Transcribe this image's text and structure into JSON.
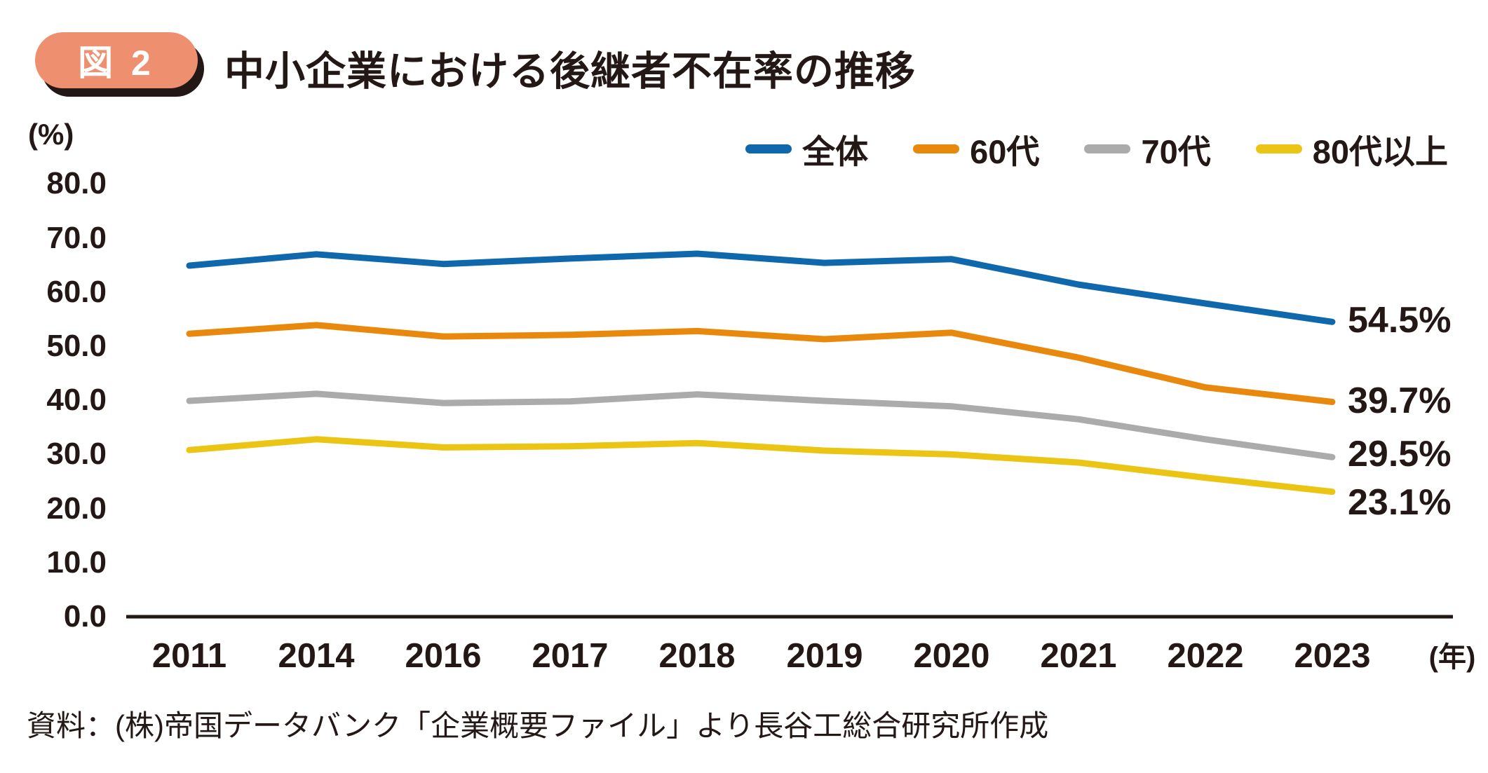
{
  "header": {
    "figure_label": "図 2",
    "title": "中小企業における後継者不在率の推移"
  },
  "axes": {
    "y_unit": "(%)",
    "x_unit": "(年)",
    "y_ticks": [
      "80.0",
      "70.0",
      "60.0",
      "50.0",
      "40.0",
      "30.0",
      "20.0",
      "10.0",
      "0.0"
    ]
  },
  "source": "資料：(株)帝国データバンク「企業概要ファイル」より長谷工総合研究所作成",
  "colors": {
    "text": "#231815",
    "badge": "#ee8f70",
    "axis_line": "#231815",
    "series_overall": "#0f67ac",
    "series_60s": "#e8880c",
    "series_70s": "#ababab",
    "series_80s": "#eac513"
  },
  "chart_data": {
    "type": "line",
    "title": "中小企業における後継者不在率の推移",
    "categories": [
      "2011",
      "2014",
      "2016",
      "2017",
      "2018",
      "2019",
      "2020",
      "2021",
      "2022",
      "2023"
    ],
    "xlabel": "(年)",
    "ylabel": "(%)",
    "ylim": [
      0,
      80
    ],
    "ytick_interval": 10,
    "grid": false,
    "legend_position": "top-right",
    "series": [
      {
        "name": "全体",
        "color": "#0f67ac",
        "values": [
          64.9,
          67.0,
          65.2,
          66.2,
          67.1,
          65.4,
          66.1,
          61.4,
          57.9,
          54.5
        ],
        "end_label": "54.5%"
      },
      {
        "name": "60代",
        "color": "#e8880c",
        "values": [
          52.3,
          53.9,
          51.8,
          52.1,
          52.8,
          51.3,
          52.5,
          47.9,
          42.4,
          39.7
        ],
        "end_label": "39.7%"
      },
      {
        "name": "70代",
        "color": "#ababab",
        "values": [
          39.9,
          41.2,
          39.5,
          39.8,
          41.1,
          39.9,
          38.9,
          36.5,
          32.8,
          29.5
        ],
        "end_label": "29.5%"
      },
      {
        "name": "80代以上",
        "color": "#eac513",
        "values": [
          30.8,
          32.8,
          31.3,
          31.5,
          32.1,
          30.7,
          30.0,
          28.5,
          25.7,
          23.1
        ],
        "end_label": "23.1%"
      }
    ]
  }
}
